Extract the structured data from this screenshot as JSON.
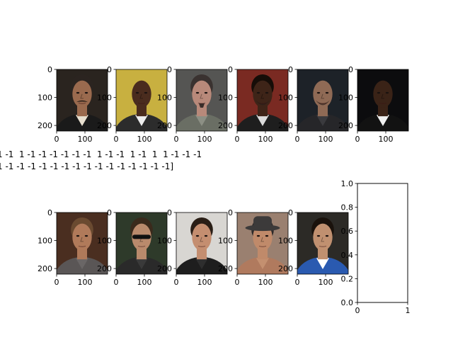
{
  "window_title": "",
  "overlay": {
    "line1": "1 -1  1 -1 -1 -1 -1 -1 -1  1 -1 -1  1 -1  1  1 -1 -1 -1",
    "line2": "1 -1 -1 -1 -1 -1 -1 -1 -1 -1 -1 -1 -1 -1 -1 -1]"
  },
  "chart_data": [
    {
      "type": "image",
      "panel": "face-1",
      "xlim": [
        0,
        180
      ],
      "ylim": [
        220,
        0
      ],
      "xticks": [
        0,
        100
      ],
      "yticks": [
        0,
        100,
        200
      ],
      "image_shape": [
        220,
        180
      ],
      "skin": "#9a6a4e",
      "bg": "#2a241f",
      "hair": "#2b2420",
      "shirt": "#1a1a1a",
      "shirt_top": "#e8e0d0",
      "mustache": true
    },
    {
      "type": "image",
      "panel": "face-2",
      "xlim": [
        0,
        180
      ],
      "ylim": [
        220,
        0
      ],
      "xticks": [
        0,
        100
      ],
      "yticks": [
        0,
        100,
        200
      ],
      "image_shape": [
        220,
        180
      ],
      "skin": "#4a2c1e",
      "bg": "#c8b040",
      "hair": "#1e140f",
      "shirt": "#2c2c2c",
      "shirt_top": "#eeeeee",
      "bald": true
    },
    {
      "type": "image",
      "panel": "face-3",
      "xlim": [
        0,
        180
      ],
      "ylim": [
        220,
        0
      ],
      "xticks": [
        0,
        100
      ],
      "yticks": [
        0,
        100,
        200
      ],
      "image_shape": [
        220,
        180
      ],
      "skin": "#b8897a",
      "bg": "#555553",
      "hair": "#3a3230",
      "shirt": "#6a6e64",
      "shirt_top": "#8c8f84",
      "goatee": true
    },
    {
      "type": "image",
      "panel": "face-4",
      "xlim": [
        0,
        180
      ],
      "ylim": [
        220,
        0
      ],
      "xticks": [
        0,
        100
      ],
      "yticks": [
        0,
        100,
        200
      ],
      "image_shape": [
        220,
        180
      ],
      "skin": "#3e2418",
      "bg": "#7a2a22",
      "hair": "#160d08",
      "shirt": "#1e1e1e",
      "shirt_top": "#dcdcdc",
      "beard": true
    },
    {
      "type": "image",
      "panel": "face-5",
      "xlim": [
        0,
        180
      ],
      "ylim": [
        220,
        0
      ],
      "xticks": [
        0,
        100
      ],
      "yticks": [
        0,
        100,
        200
      ],
      "image_shape": [
        220,
        180
      ],
      "skin": "#8f6a55",
      "bg": "#1d2228",
      "hair": "#d0ccc6",
      "shirt": "#262629",
      "shirt_top": "#3a3a3e",
      "bald": true,
      "beard": true
    },
    {
      "type": "image",
      "panel": "face-6",
      "xlim": [
        0,
        180
      ],
      "ylim": [
        220,
        0
      ],
      "xticks": [
        0,
        100
      ],
      "yticks": [
        0,
        100,
        200
      ],
      "image_shape": [
        220,
        180
      ],
      "skin": "#3a2317",
      "bg": "#0c0c0e",
      "hair": "#120b07",
      "shirt": "#121212",
      "shirt_top": "#f0f0f0",
      "bald": true
    },
    {
      "type": "image",
      "panel": "face-7",
      "xlim": [
        0,
        180
      ],
      "ylim": [
        220,
        0
      ],
      "xticks": [
        0,
        100
      ],
      "yticks": [
        0,
        100,
        200
      ],
      "image_shape": [
        220,
        180
      ],
      "skin": "#b07a5a",
      "bg": "#4a2e20",
      "hair": "#6a4a30",
      "shirt": "#5a5656",
      "shirt_top": "#6a6666"
    },
    {
      "type": "image",
      "panel": "face-8",
      "xlim": [
        0,
        180
      ],
      "ylim": [
        220,
        0
      ],
      "xticks": [
        0,
        100
      ],
      "yticks": [
        0,
        100,
        200
      ],
      "image_shape": [
        220,
        180
      ],
      "skin": "#b98a6c",
      "bg": "#2e3a2a",
      "hair": "#3a2a1c",
      "shirt": "#2a2a2a",
      "shirt_top": "#3a3a3a",
      "sunglasses": true
    },
    {
      "type": "image",
      "panel": "face-9",
      "xlim": [
        0,
        180
      ],
      "ylim": [
        220,
        0
      ],
      "xticks": [
        0,
        100
      ],
      "yticks": [
        0,
        100,
        200
      ],
      "image_shape": [
        220,
        180
      ],
      "skin": "#c48e70",
      "bg": "#d8d6d2",
      "hair": "#2a1e16",
      "shirt": "#1e1e1e",
      "shirt_top": "#2e2e2e"
    },
    {
      "type": "image",
      "panel": "face-10",
      "xlim": [
        0,
        180
      ],
      "ylim": [
        220,
        0
      ],
      "xticks": [
        0,
        100
      ],
      "yticks": [
        0,
        100,
        200
      ],
      "image_shape": [
        220,
        180
      ],
      "skin": "#c08a6a",
      "bg": "#9a8070",
      "hair": "#2e2a2a",
      "shirt": "#b07a5e",
      "shirt_top": "#c49070",
      "hat": true
    },
    {
      "type": "image",
      "panel": "face-11",
      "xlim": [
        0,
        180
      ],
      "ylim": [
        220,
        0
      ],
      "xticks": [
        0,
        100
      ],
      "yticks": [
        0,
        100,
        200
      ],
      "image_shape": [
        220,
        180
      ],
      "skin": "#c09070",
      "bg": "#2c2a26",
      "hair": "#1a120c",
      "shirt": "#2a5ab0",
      "shirt_top": "#ffffff"
    },
    {
      "type": "empty",
      "panel": "empty-axes",
      "xlim": [
        0,
        1
      ],
      "ylim": [
        0,
        1
      ],
      "xticks": [
        0,
        1
      ],
      "yticks": [
        0.0,
        0.2,
        0.4,
        0.6,
        0.8,
        1.0
      ],
      "xtick_labels": [
        "0",
        "1"
      ],
      "ytick_labels": [
        "0.0",
        "0.2",
        "0.4",
        "0.6",
        "0.8",
        "1.0"
      ]
    }
  ]
}
